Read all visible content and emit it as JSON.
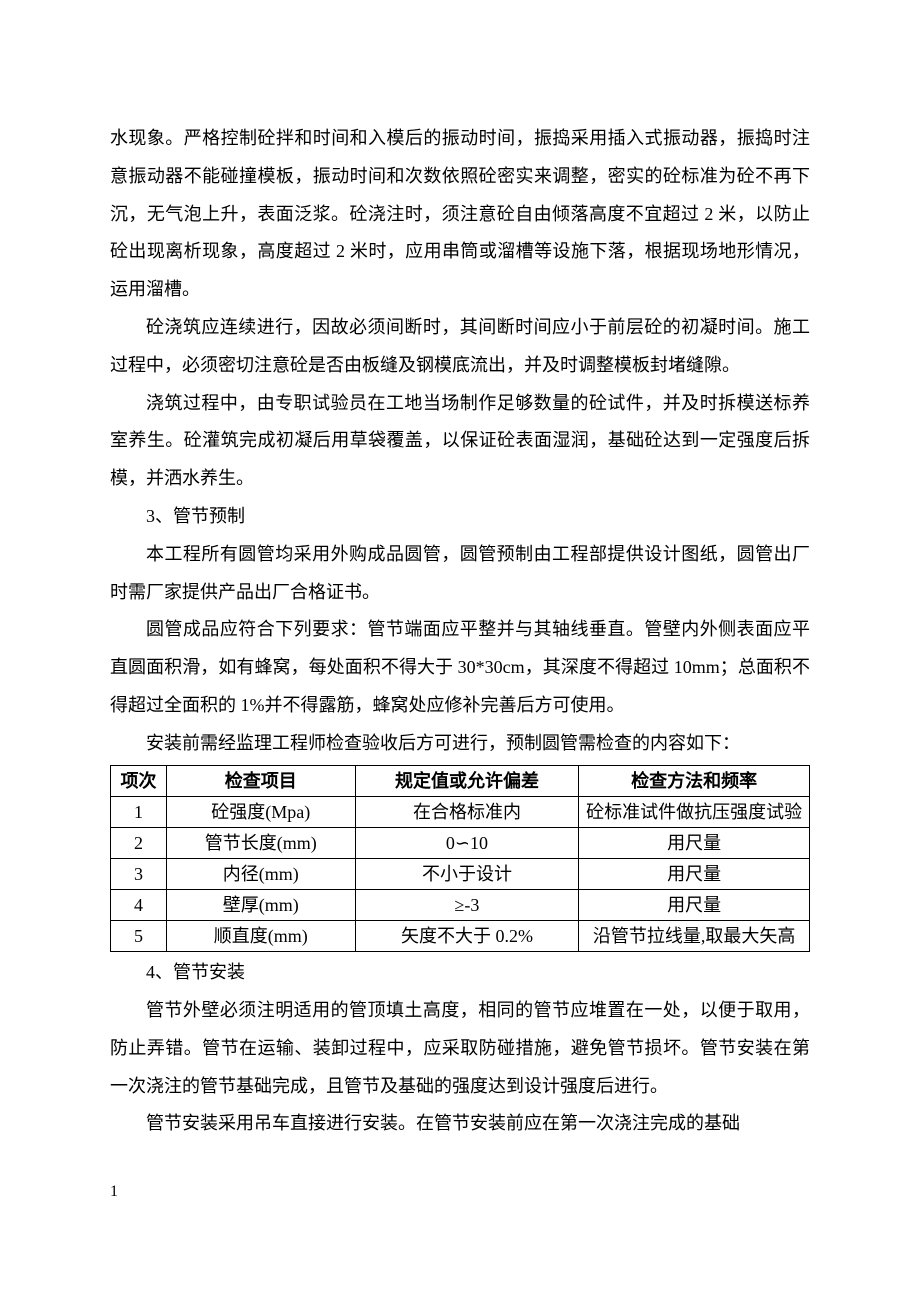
{
  "paragraphs": {
    "p1": "水现象。严格控制砼拌和时间和入模后的振动时间，振捣采用插入式振动器，振捣时注意振动器不能碰撞模板，振动时间和次数依照砼密实来调整，密实的砼标准为砼不再下沉，无气泡上升，表面泛浆。砼浇注时，须注意砼自由倾落高度不宜超过 2 米，以防止砼出现离析现象，高度超过 2 米时，应用串筒或溜槽等设施下落，根据现场地形情况，运用溜槽。",
    "p2": "砼浇筑应连续进行，因故必须间断时，其间断时间应小于前层砼的初凝时间。施工过程中，必须密切注意砼是否由板缝及钢模底流出，并及时调整模板封堵缝隙。",
    "p3": "浇筑过程中，由专职试验员在工地当场制作足够数量的砼试件，并及时拆模送标养室养生。砼灌筑完成初凝后用草袋覆盖，以保证砼表面湿润，基础砼达到一定强度后拆模，并洒水养生。",
    "h3": "3、管节预制",
    "p4": "本工程所有圆管均采用外购成品圆管，圆管预制由工程部提供设计图纸，圆管出厂时需厂家提供产品出厂合格证书。",
    "p5": "圆管成品应符合下列要求：管节端面应平整并与其轴线垂直。管壁内外侧表面应平直圆面积滑，如有蜂窝，每处面积不得大于 30*30cm，其深度不得超过 10mm；总面积不得超过全面积的 1%并不得露筋，蜂窝处应修补完善后方可使用。",
    "p6": "安装前需经监理工程师检查验收后方可进行，预制圆管需检查的内容如下：",
    "h4": "4、管节安装",
    "p7": "管节外壁必须注明适用的管顶填土高度，相同的管节应堆置在一处，以便于取用，防止弄错。管节在运输、装卸过程中，应采取防碰措施，避免管节损坏。管节安装在第一次浇注的管节基础完成，且管节及基础的强度达到设计强度后进行。",
    "p8": "管节安装采用吊车直接进行安装。在管节安装前应在第一次浇注完成的基础"
  },
  "table": {
    "headers": [
      "项次",
      "检查项目",
      "规定值或允许偏差",
      "检查方法和频率"
    ],
    "rows": [
      [
        "1",
        "砼强度(Mpa)",
        "在合格标准内",
        "砼标准试件做抗压强度试验"
      ],
      [
        "2",
        "管节长度(mm)",
        "0∽10",
        "用尺量"
      ],
      [
        "3",
        "内径(mm)",
        "不小于设计",
        "用尺量"
      ],
      [
        "4",
        "壁厚(mm)",
        "≥-3",
        "用尺量"
      ],
      [
        "5",
        "顺直度(mm)",
        "矢度不大于 0.2%",
        "沿管节拉线量,取最大矢高"
      ]
    ]
  },
  "footer": "1"
}
